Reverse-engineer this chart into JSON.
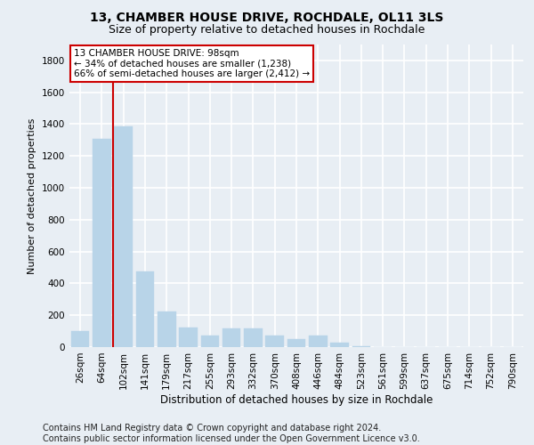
{
  "title1": "13, CHAMBER HOUSE DRIVE, ROCHDALE, OL11 3LS",
  "title2": "Size of property relative to detached houses in Rochdale",
  "xlabel": "Distribution of detached houses by size in Rochdale",
  "ylabel": "Number of detached properties",
  "categories": [
    "26sqm",
    "64sqm",
    "102sqm",
    "141sqm",
    "179sqm",
    "217sqm",
    "255sqm",
    "293sqm",
    "332sqm",
    "370sqm",
    "408sqm",
    "446sqm",
    "484sqm",
    "523sqm",
    "561sqm",
    "599sqm",
    "637sqm",
    "675sqm",
    "714sqm",
    "752sqm",
    "790sqm"
  ],
  "values": [
    100,
    1305,
    1385,
    475,
    225,
    125,
    75,
    120,
    120,
    75,
    50,
    75,
    30,
    5,
    2,
    1,
    1,
    1,
    0,
    0,
    0
  ],
  "bar_color": "#b8d4e8",
  "bar_edge_color": "#b8d4e8",
  "vline_x": 1.5,
  "vline_color": "#cc0000",
  "ylim": [
    0,
    1900
  ],
  "yticks": [
    0,
    200,
    400,
    600,
    800,
    1000,
    1200,
    1400,
    1600,
    1800
  ],
  "annotation_box_text": "13 CHAMBER HOUSE DRIVE: 98sqm\n← 34% of detached houses are smaller (1,238)\n66% of semi-detached houses are larger (2,412) →",
  "annotation_box_color": "#cc0000",
  "annotation_box_fill": "#ffffff",
  "footer_text": "Contains HM Land Registry data © Crown copyright and database right 2024.\nContains public sector information licensed under the Open Government Licence v3.0.",
  "background_color": "#e8eef4",
  "plot_bg_color": "#e8eef4",
  "grid_color": "#ffffff",
  "title1_fontsize": 10,
  "title2_fontsize": 9,
  "xlabel_fontsize": 8.5,
  "ylabel_fontsize": 8,
  "tick_fontsize": 7.5,
  "footer_fontsize": 7
}
